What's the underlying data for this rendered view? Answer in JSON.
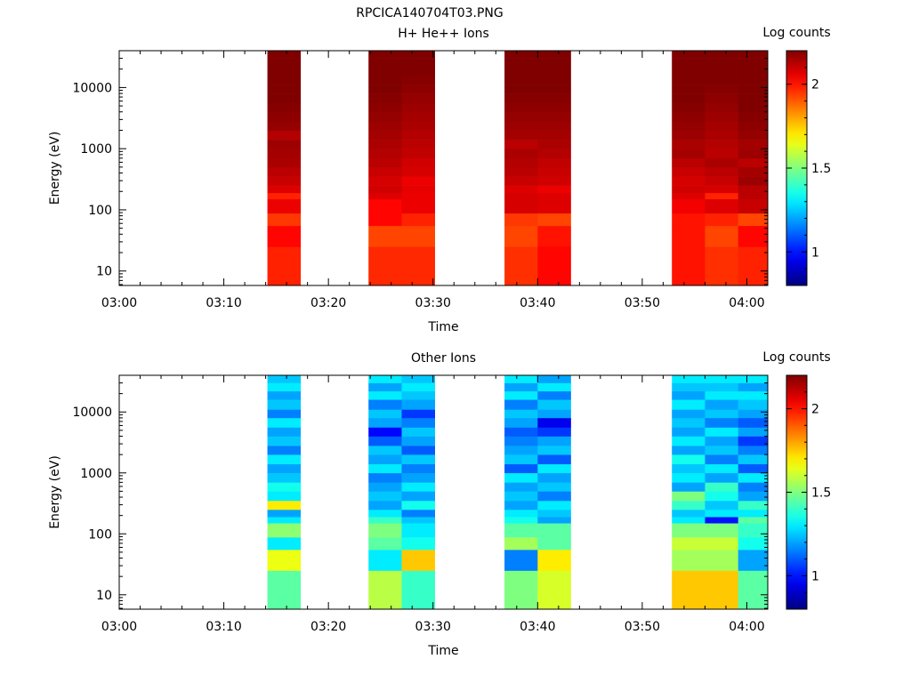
{
  "figure": {
    "filename": "RPCICA140704T03.PNG"
  },
  "chart_data": [
    {
      "type": "heatmap",
      "title": "H+ He++ Ions",
      "xlabel": "Time",
      "ylabel": "Energy (eV)",
      "y_scale": "log",
      "y_range": [
        5.8,
        40000
      ],
      "y_ticks": [
        10,
        100,
        1000,
        10000
      ],
      "y_tick_labels": [
        "10",
        "100",
        "1000",
        "10000"
      ],
      "x_range": [
        "03:00",
        "04:02"
      ],
      "x_ticks": [
        "03:00",
        "03:10",
        "03:20",
        "03:30",
        "03:40",
        "03:50",
        "04:00"
      ],
      "colorbar": {
        "label": "Log counts",
        "range": [
          0.8,
          2.2
        ],
        "ticks": [
          1,
          1.5,
          2
        ],
        "tick_labels": [
          "1",
          "1.5",
          "2"
        ]
      },
      "time_columns": [
        {
          "start": "03:14:10",
          "end": "03:17:20"
        },
        {
          "start": "03:23:50",
          "end": "03:27:00"
        },
        {
          "start": "03:27:00",
          "end": "03:30:10"
        },
        {
          "start": "03:36:50",
          "end": "03:40:00"
        },
        {
          "start": "03:40:00",
          "end": "03:43:10"
        },
        {
          "start": "03:52:50",
          "end": "03:56:00"
        },
        {
          "start": "03:56:00",
          "end": "03:59:10"
        },
        {
          "start": "03:59:10",
          "end": "04:02:20"
        }
      ],
      "energy_bins": [
        {
          "low": 5.8,
          "high": 25,
          "values": [
            1.98,
            1.97,
            1.97,
            1.96,
            2.02,
            2.0,
            1.96,
            1.98
          ]
        },
        {
          "low": 25,
          "high": 55,
          "values": [
            2.02,
            1.93,
            1.93,
            1.93,
            2.0,
            2.0,
            1.93,
            2.02
          ]
        },
        {
          "low": 55,
          "high": 88,
          "values": [
            1.95,
            2.02,
            1.98,
            1.95,
            1.93,
            2.0,
            1.98,
            1.93
          ]
        },
        {
          "low": 88,
          "high": 150,
          "values": [
            2.05,
            2.02,
            2.05,
            2.08,
            2.07,
            2.04,
            2.07,
            2.1
          ]
        },
        {
          "low": 150,
          "high": 190,
          "values": [
            1.98,
            2.07,
            2.05,
            2.08,
            2.07,
            2.07,
            1.98,
            2.12
          ]
        },
        {
          "low": 190,
          "high": 250,
          "values": [
            2.07,
            2.09,
            2.06,
            2.07,
            2.05,
            2.09,
            2.08,
            2.12
          ]
        },
        {
          "low": 250,
          "high": 350,
          "values": [
            2.1,
            2.08,
            2.05,
            2.1,
            2.09,
            2.08,
            2.1,
            2.16
          ]
        },
        {
          "low": 350,
          "high": 500,
          "values": [
            2.12,
            2.1,
            2.08,
            2.12,
            2.1,
            2.1,
            2.12,
            2.15
          ]
        },
        {
          "low": 500,
          "high": 700,
          "values": [
            2.14,
            2.12,
            2.09,
            2.13,
            2.11,
            2.12,
            2.14,
            2.12
          ]
        },
        {
          "low": 700,
          "high": 1000,
          "values": [
            2.15,
            2.13,
            2.11,
            2.14,
            2.13,
            2.15,
            2.12,
            2.16
          ]
        },
        {
          "low": 1000,
          "high": 1400,
          "values": [
            2.16,
            2.14,
            2.12,
            2.12,
            2.14,
            2.14,
            2.13,
            2.15
          ]
        },
        {
          "low": 1400,
          "high": 2000,
          "values": [
            2.13,
            2.15,
            2.13,
            2.15,
            2.15,
            2.16,
            2.14,
            2.17
          ]
        },
        {
          "low": 2000,
          "high": 2800,
          "values": [
            2.17,
            2.16,
            2.14,
            2.16,
            2.16,
            2.17,
            2.15,
            2.18
          ]
        },
        {
          "low": 2800,
          "high": 4000,
          "values": [
            2.18,
            2.17,
            2.15,
            2.17,
            2.17,
            2.18,
            2.16,
            2.19
          ]
        },
        {
          "low": 4000,
          "high": 5600,
          "values": [
            2.19,
            2.18,
            2.16,
            2.18,
            2.18,
            2.19,
            2.17,
            2.2
          ]
        },
        {
          "low": 5600,
          "high": 8000,
          "values": [
            2.2,
            2.19,
            2.17,
            2.19,
            2.19,
            2.2,
            2.18,
            2.2
          ]
        },
        {
          "low": 8000,
          "high": 11000,
          "values": [
            2.21,
            2.2,
            2.18,
            2.2,
            2.2,
            2.21,
            2.19,
            2.21
          ]
        },
        {
          "low": 11000,
          "high": 16000,
          "values": [
            2.2,
            2.21,
            2.19,
            2.2,
            2.21,
            2.21,
            2.2,
            2.21
          ]
        },
        {
          "low": 16000,
          "high": 22000,
          "values": [
            2.21,
            2.2,
            2.2,
            2.21,
            2.2,
            2.22,
            2.21,
            2.22
          ]
        },
        {
          "low": 22000,
          "high": 30000,
          "values": [
            2.22,
            2.21,
            2.2,
            2.21,
            2.21,
            2.22,
            2.21,
            2.22
          ]
        },
        {
          "low": 30000,
          "high": 40000,
          "values": [
            2.21,
            2.22,
            2.21,
            2.22,
            2.22,
            2.22,
            2.22,
            2.22
          ]
        }
      ]
    },
    {
      "type": "heatmap",
      "title": "Other Ions",
      "xlabel": "Time",
      "ylabel": "Energy (eV)",
      "y_scale": "log",
      "y_range": [
        5.8,
        40000
      ],
      "y_ticks": [
        10,
        100,
        1000,
        10000
      ],
      "y_tick_labels": [
        "10",
        "100",
        "1000",
        "10000"
      ],
      "x_range": [
        "03:00",
        "04:02"
      ],
      "x_ticks": [
        "03:00",
        "03:10",
        "03:20",
        "03:30",
        "03:40",
        "03:50",
        "04:00"
      ],
      "colorbar": {
        "label": "Log counts",
        "range": [
          0.8,
          2.2
        ],
        "ticks": [
          1,
          1.5,
          2
        ],
        "tick_labels": [
          "1",
          "1.5",
          "2"
        ]
      },
      "time_columns": [
        {
          "start": "03:14:10",
          "end": "03:17:20"
        },
        {
          "start": "03:23:50",
          "end": "03:27:00"
        },
        {
          "start": "03:27:00",
          "end": "03:30:10"
        },
        {
          "start": "03:36:50",
          "end": "03:40:00"
        },
        {
          "start": "03:40:00",
          "end": "03:43:10"
        },
        {
          "start": "03:52:50",
          "end": "03:56:00"
        },
        {
          "start": "03:56:00",
          "end": "03:59:10"
        },
        {
          "start": "03:59:10",
          "end": "04:02:20"
        }
      ],
      "energy_bins": [
        {
          "low": 5.8,
          "high": 25,
          "values": [
            1.45,
            1.58,
            1.4,
            1.5,
            1.62,
            1.75,
            1.75,
            1.45
          ]
        },
        {
          "low": 25,
          "high": 55,
          "values": [
            1.65,
            1.3,
            1.75,
            1.15,
            1.7,
            1.55,
            1.55,
            1.2
          ]
        },
        {
          "low": 55,
          "high": 88,
          "values": [
            1.3,
            1.45,
            1.35,
            1.55,
            1.45,
            1.6,
            1.6,
            1.35
          ]
        },
        {
          "low": 88,
          "high": 150,
          "values": [
            1.52,
            1.5,
            1.3,
            1.45,
            1.45,
            1.5,
            1.5,
            1.4
          ]
        },
        {
          "low": 150,
          "high": 190,
          "values": [
            1.3,
            1.4,
            1.25,
            1.35,
            1.2,
            1.3,
            1.0,
            1.45
          ]
        },
        {
          "low": 190,
          "high": 250,
          "values": [
            1.2,
            1.3,
            1.15,
            1.3,
            1.25,
            1.25,
            1.3,
            1.3
          ]
        },
        {
          "low": 250,
          "high": 350,
          "values": [
            1.7,
            1.2,
            1.35,
            1.2,
            1.3,
            1.4,
            1.25,
            1.4
          ]
        },
        {
          "low": 350,
          "high": 500,
          "values": [
            1.3,
            1.25,
            1.2,
            1.25,
            1.15,
            1.5,
            1.35,
            1.2
          ]
        },
        {
          "low": 500,
          "high": 700,
          "values": [
            1.35,
            1.2,
            1.3,
            1.2,
            1.25,
            1.2,
            1.4,
            1.15
          ]
        },
        {
          "low": 700,
          "high": 1000,
          "values": [
            1.25,
            1.15,
            1.2,
            1.3,
            1.2,
            1.3,
            1.2,
            1.3
          ]
        },
        {
          "low": 1000,
          "high": 1400,
          "values": [
            1.2,
            1.3,
            1.15,
            1.1,
            1.3,
            1.25,
            1.3,
            1.1
          ]
        },
        {
          "low": 1400,
          "high": 2000,
          "values": [
            1.3,
            1.2,
            1.25,
            1.25,
            1.1,
            1.35,
            1.15,
            1.25
          ]
        },
        {
          "low": 2000,
          "high": 2800,
          "values": [
            1.15,
            1.25,
            1.1,
            1.2,
            1.25,
            1.2,
            1.25,
            1.15
          ]
        },
        {
          "low": 2800,
          "high": 4000,
          "values": [
            1.25,
            1.1,
            1.2,
            1.15,
            1.2,
            1.3,
            1.2,
            1.05
          ]
        },
        {
          "low": 4000,
          "high": 5600,
          "values": [
            1.2,
            0.98,
            1.25,
            1.1,
            1.05,
            1.2,
            1.3,
            1.2
          ]
        },
        {
          "low": 5600,
          "high": 8000,
          "values": [
            1.3,
            1.2,
            1.15,
            1.2,
            0.95,
            1.25,
            1.15,
            1.1
          ]
        },
        {
          "low": 8000,
          "high": 11000,
          "values": [
            1.15,
            1.25,
            1.05,
            1.25,
            1.2,
            1.2,
            1.25,
            1.2
          ]
        },
        {
          "low": 11000,
          "high": 16000,
          "values": [
            1.25,
            1.15,
            1.2,
            1.15,
            1.25,
            1.3,
            1.2,
            1.25
          ]
        },
        {
          "low": 16000,
          "high": 22000,
          "values": [
            1.2,
            1.3,
            1.25,
            1.3,
            1.15,
            1.2,
            1.3,
            1.3
          ]
        },
        {
          "low": 22000,
          "high": 30000,
          "values": [
            1.3,
            1.2,
            1.3,
            1.2,
            1.3,
            1.25,
            1.25,
            1.2
          ]
        },
        {
          "low": 30000,
          "high": 40000,
          "values": [
            1.25,
            1.3,
            1.25,
            1.3,
            1.2,
            1.3,
            1.3,
            1.3
          ]
        }
      ]
    }
  ]
}
